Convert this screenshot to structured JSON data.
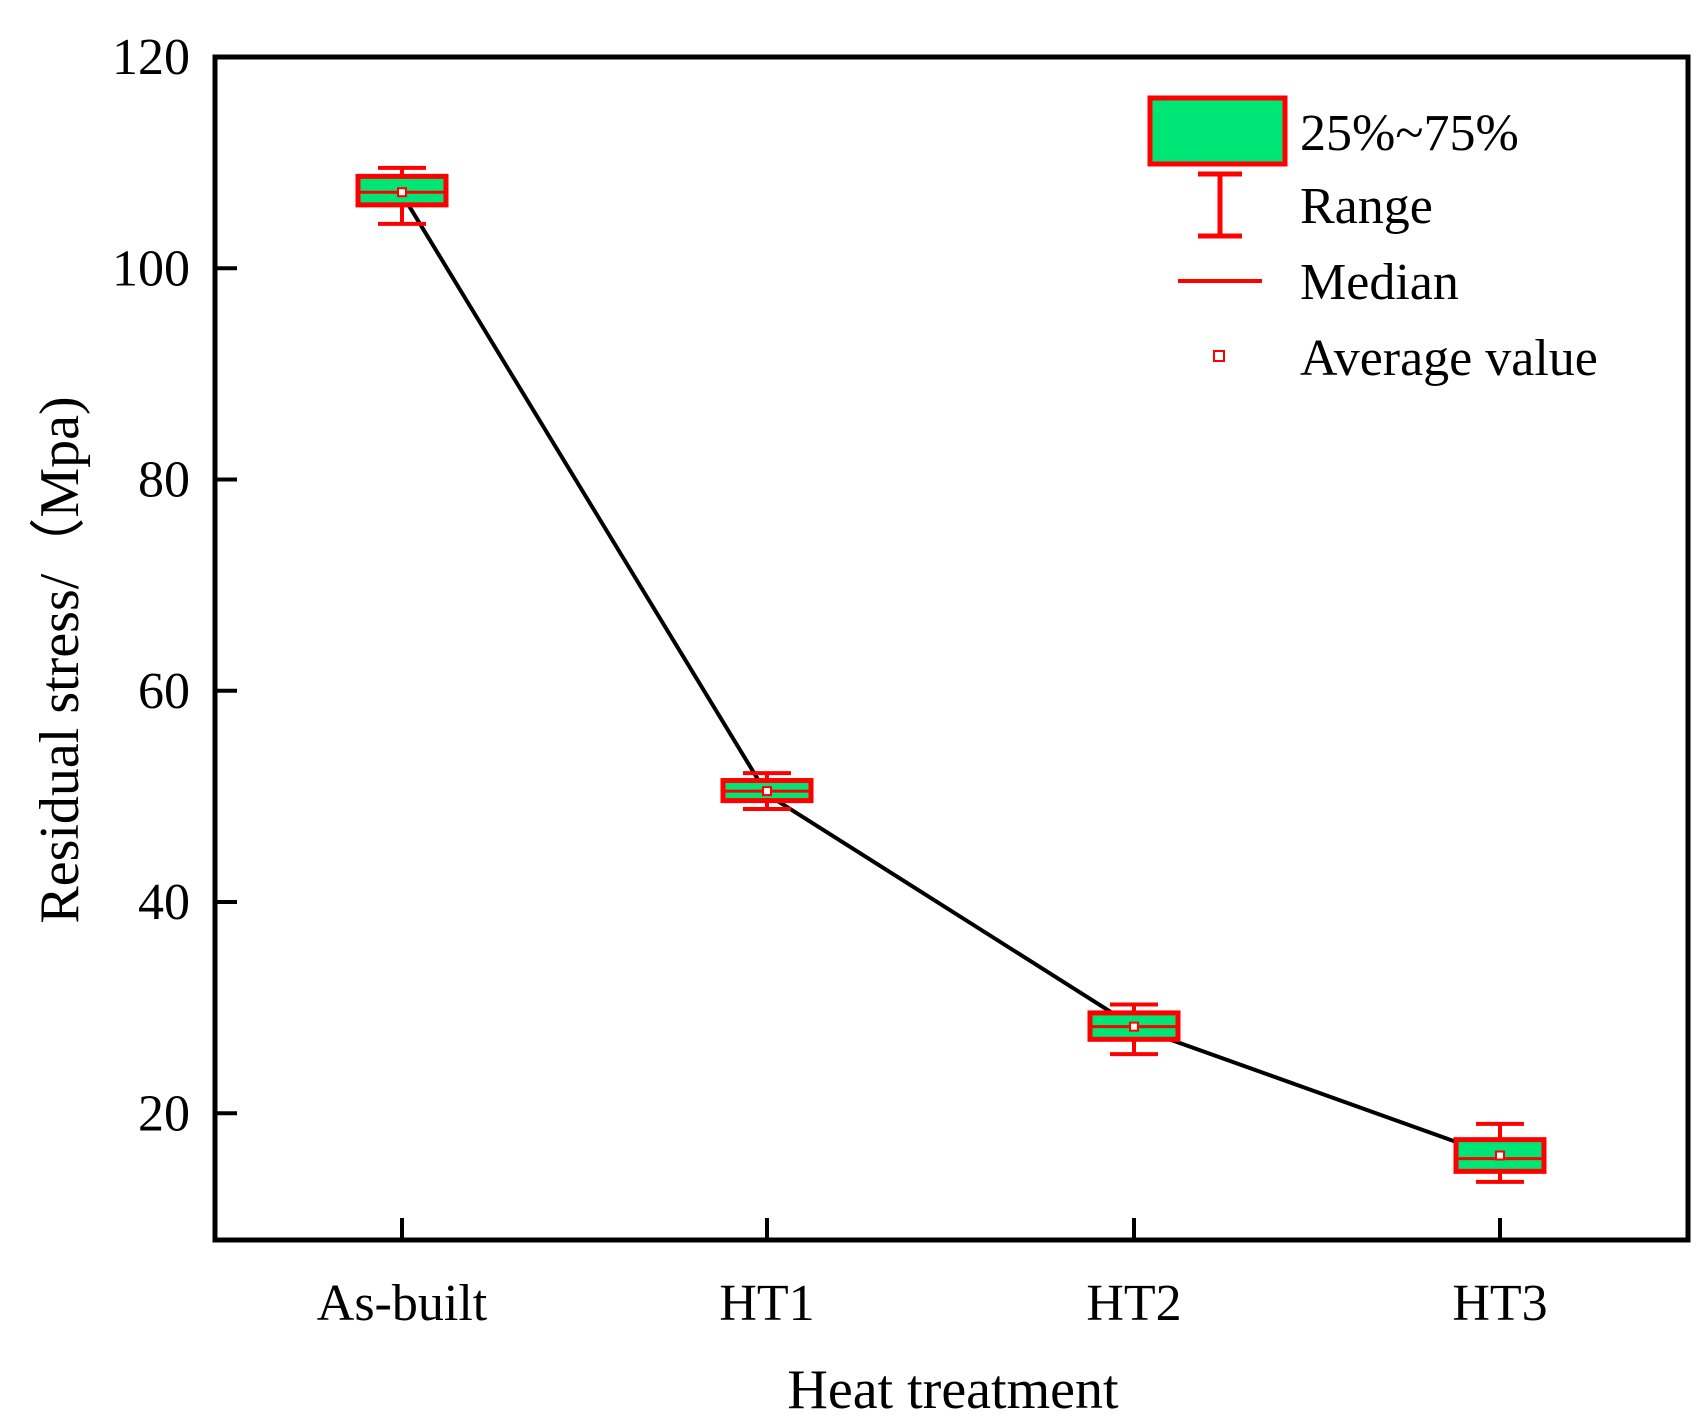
{
  "chart_data": {
    "type": "box",
    "title": "",
    "xlabel": "Heat treatment",
    "ylabel": "Residual stress/（Mpa)",
    "ylim": [
      8,
      120
    ],
    "yticks": [
      20,
      40,
      60,
      80,
      100,
      120
    ],
    "categories": [
      "As-built",
      "HT1",
      "HT2",
      "HT3"
    ],
    "boxes": [
      {
        "category": "As-built",
        "min": 104.2,
        "q1": 106.0,
        "median": 107.2,
        "q3": 108.7,
        "max": 109.5,
        "mean": 107.2
      },
      {
        "category": "HT1",
        "min": 48.8,
        "q1": 49.6,
        "median": 50.5,
        "q3": 51.5,
        "max": 52.2,
        "mean": 50.5
      },
      {
        "category": "HT2",
        "min": 25.6,
        "q1": 27.0,
        "median": 28.2,
        "q3": 29.5,
        "max": 30.3,
        "mean": 28.2
      },
      {
        "category": "HT3",
        "min": 13.5,
        "q1": 14.5,
        "median": 15.7,
        "q3": 17.5,
        "max": 19.0,
        "mean": 16.0
      }
    ],
    "trend_line": {
      "name": "mean trend",
      "values": [
        107,
        50.2,
        28.2,
        15.8
      ]
    },
    "legend": {
      "position": "top-right",
      "items": [
        {
          "label": "25%~75%",
          "symbol": "box"
        },
        {
          "label": "Range",
          "symbol": "whisker"
        },
        {
          "label": "Median",
          "symbol": "line"
        },
        {
          "label": "Average value",
          "symbol": "square-marker"
        }
      ]
    },
    "colors": {
      "box_fill": "#00e676",
      "box_edge": "#ff0000",
      "whisker": "#ff0000",
      "median": "#ff0000",
      "trend_line": "#000000",
      "axis": "#000000"
    }
  }
}
